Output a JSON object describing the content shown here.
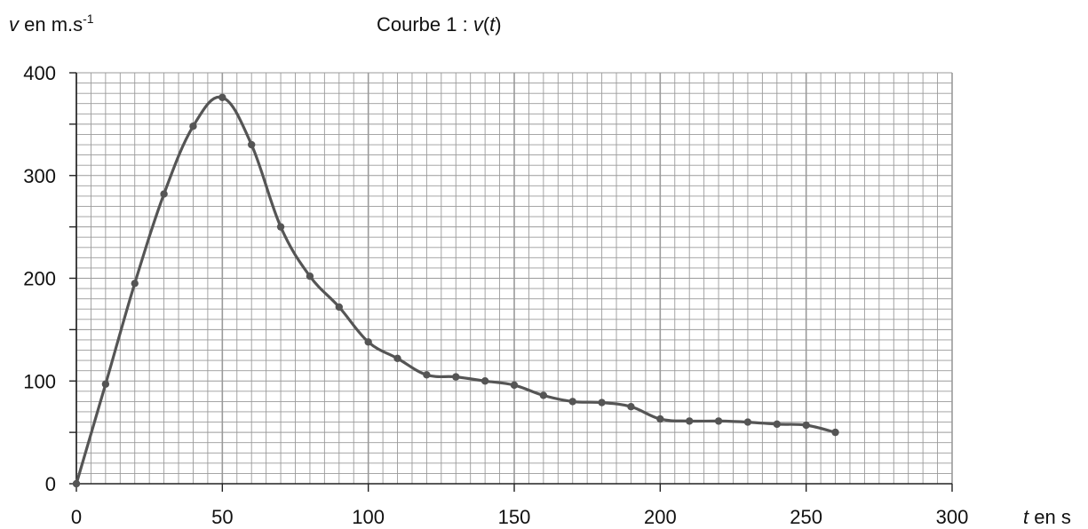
{
  "chart_data": {
    "type": "line",
    "title": {
      "prefix": "Courbe 1 : ",
      "var": "v",
      "open": "(",
      "arg": "t",
      "close": ")"
    },
    "ylabel": {
      "var": "v",
      "text": " en m.s",
      "sup": "-1"
    },
    "xlabel": {
      "var": "t",
      "text": " en s"
    },
    "xlim": [
      0,
      300
    ],
    "ylim": [
      0,
      400
    ],
    "x_ticks": [
      "0",
      "50",
      "100",
      "150",
      "200",
      "250",
      "300"
    ],
    "y_ticks": [
      "0",
      "100",
      "200",
      "300",
      "400"
    ],
    "grid": true,
    "markers": true,
    "line_color": "#555555",
    "grid_color": "#9a9a9a",
    "series": [
      {
        "x": [
          0,
          10,
          20,
          30,
          40,
          50,
          60,
          70,
          80,
          90,
          100,
          110,
          120,
          130,
          140,
          150,
          160,
          170,
          180,
          190,
          200,
          210,
          220,
          230,
          240,
          250,
          260
        ],
        "y": [
          0,
          97,
          195,
          282,
          348,
          376,
          330,
          250,
          202,
          172,
          138,
          122,
          106,
          104,
          100,
          96,
          86,
          80,
          79,
          75,
          63,
          61,
          61,
          60,
          58,
          57,
          50
        ]
      }
    ]
  }
}
